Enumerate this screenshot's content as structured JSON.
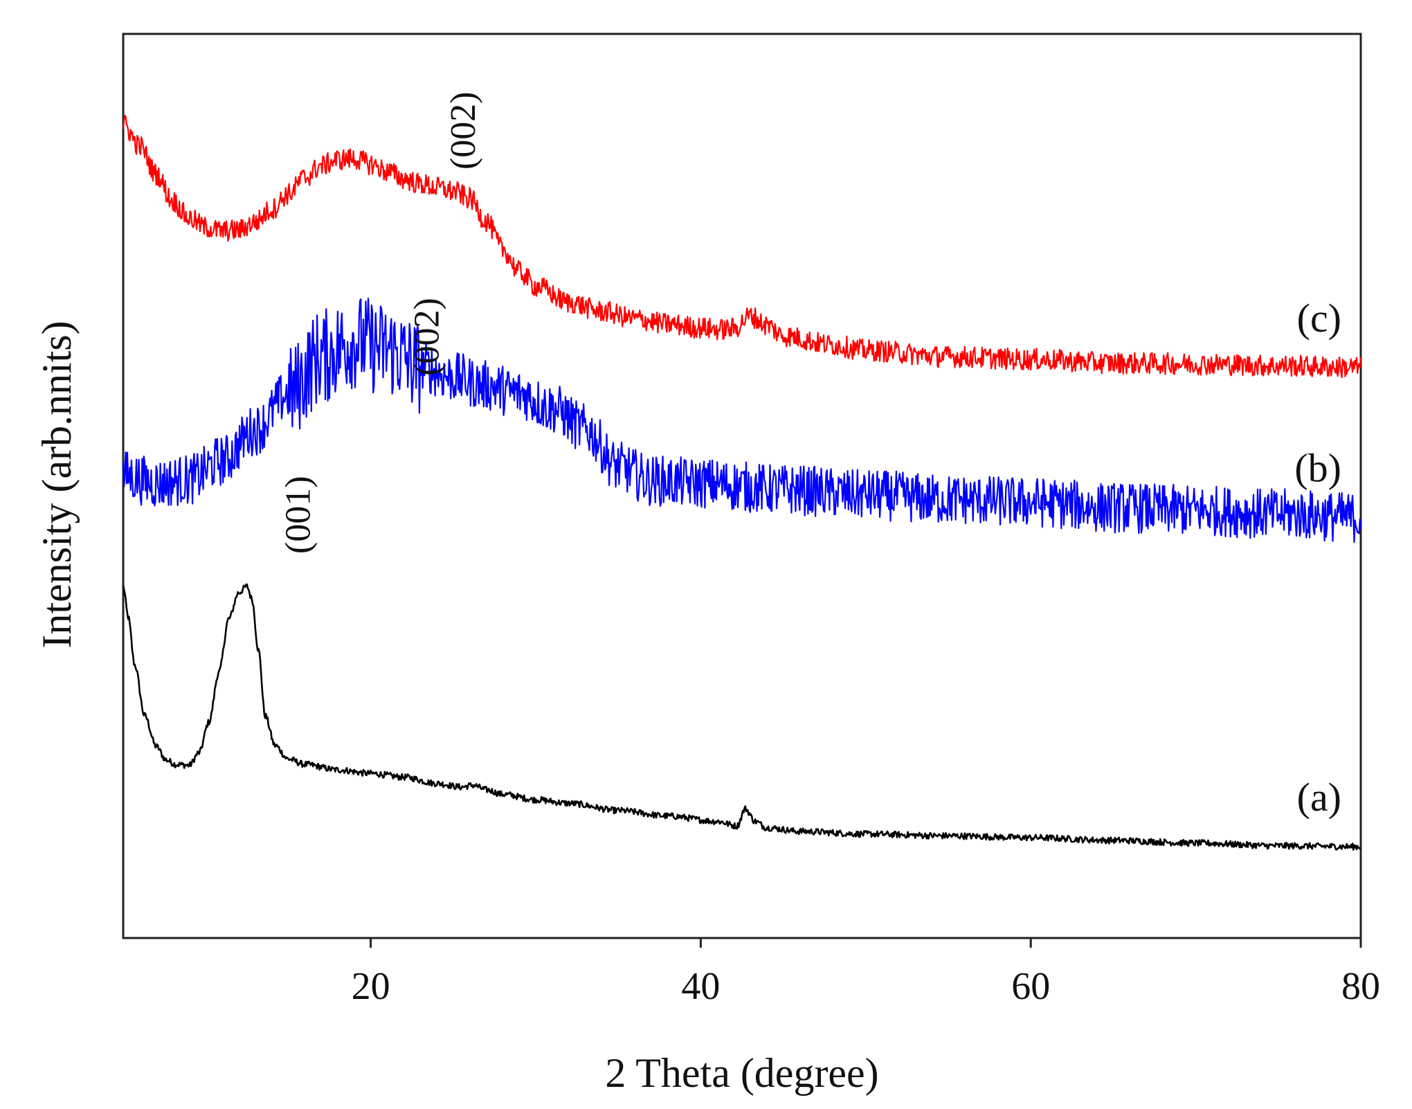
{
  "chart_data": {
    "type": "line",
    "title": "",
    "xlabel": "2 Theta (degree)",
    "ylabel": "Intensity (arb.nnits)",
    "xlim": [
      5,
      80
    ],
    "ylim": [
      0,
      100
    ],
    "xticks": [
      20,
      40,
      60,
      80
    ],
    "yticks_shown": false,
    "grid": false,
    "legend": "none",
    "series": [
      {
        "name": "(a)",
        "label": "(a)",
        "color": "#000000",
        "noise": 0.35,
        "points": [
          [
            5,
            38.9
          ],
          [
            5.3,
            35.5
          ],
          [
            5.7,
            30.2
          ],
          [
            6.3,
            24.6
          ],
          [
            7,
            21.2
          ],
          [
            7.6,
            19.7
          ],
          [
            8.2,
            19.2
          ],
          [
            9,
            19.1
          ],
          [
            9.6,
            20.5
          ],
          [
            10.2,
            23.9
          ],
          [
            10.8,
            29.4
          ],
          [
            11.4,
            35.3
          ],
          [
            12,
            38.2
          ],
          [
            12.5,
            38.9
          ],
          [
            12.8,
            37.5
          ],
          [
            13.2,
            31.8
          ],
          [
            13.6,
            24.6
          ],
          [
            14.2,
            21.3
          ],
          [
            15,
            19.8
          ],
          [
            16,
            19.2
          ],
          [
            18,
            18.6
          ],
          [
            20,
            18.2
          ],
          [
            22,
            17.8
          ],
          [
            24,
            17.1
          ],
          [
            25.5,
            16.7
          ],
          [
            26.2,
            16.9
          ],
          [
            27,
            16.4
          ],
          [
            28,
            15.9
          ],
          [
            30,
            15.3
          ],
          [
            32,
            14.9
          ],
          [
            35,
            14.1
          ],
          [
            38,
            13.5
          ],
          [
            41,
            12.9
          ],
          [
            42.2,
            12.4
          ],
          [
            42.7,
            14.3
          ],
          [
            43.3,
            12.9
          ],
          [
            44,
            12.2
          ],
          [
            46,
            11.8
          ],
          [
            50,
            11.5
          ],
          [
            55,
            11.3
          ],
          [
            60,
            11.1
          ],
          [
            65,
            10.8
          ],
          [
            70,
            10.5
          ],
          [
            75,
            10.2
          ],
          [
            80,
            10.1
          ]
        ]
      },
      {
        "name": "(b)",
        "label": "(b)",
        "color": "#0000ff",
        "noise": 2.8,
        "points": [
          [
            5,
            51.2
          ],
          [
            7,
            50.3
          ],
          [
            9,
            50.7
          ],
          [
            11,
            52.8
          ],
          [
            13,
            56.2
          ],
          [
            15,
            60.1
          ],
          [
            17,
            64.3
          ],
          [
            19,
            66.0
          ],
          [
            21,
            65.1
          ],
          [
            23,
            63.2
          ],
          [
            25,
            62.0
          ],
          [
            27,
            61.1
          ],
          [
            29,
            60.2
          ],
          [
            31,
            58.6
          ],
          [
            33,
            56.3
          ],
          [
            35,
            52.1
          ],
          [
            37,
            50.6
          ],
          [
            40,
            50.3
          ],
          [
            45,
            49.6
          ],
          [
            50,
            49.0
          ],
          [
            55,
            48.5
          ],
          [
            60,
            48.2
          ],
          [
            65,
            47.6
          ],
          [
            70,
            47.3
          ],
          [
            75,
            46.9
          ],
          [
            80,
            46.5
          ]
        ]
      },
      {
        "name": "(c)",
        "label": "(c)",
        "color": "#ff0000",
        "noise": 1.2,
        "points": [
          [
            5,
            90.0
          ],
          [
            6,
            87.6
          ],
          [
            7,
            84.5
          ],
          [
            8,
            81.5
          ],
          [
            9,
            79.6
          ],
          [
            10,
            78.6
          ],
          [
            11,
            78.2
          ],
          [
            12,
            78.3
          ],
          [
            13,
            79.2
          ],
          [
            14,
            80.6
          ],
          [
            15,
            82.3
          ],
          [
            16,
            84.1
          ],
          [
            17,
            85.4
          ],
          [
            18,
            86.1
          ],
          [
            19,
            86.2
          ],
          [
            20,
            85.6
          ],
          [
            21,
            84.8
          ],
          [
            22,
            84.0
          ],
          [
            23,
            83.4
          ],
          [
            24,
            83.0
          ],
          [
            25,
            82.6
          ],
          [
            26,
            81.8
          ],
          [
            27,
            79.3
          ],
          [
            28,
            76.2
          ],
          [
            29,
            73.7
          ],
          [
            30,
            72.1
          ],
          [
            32,
            70.3
          ],
          [
            34,
            69.3
          ],
          [
            36,
            68.5
          ],
          [
            38,
            67.9
          ],
          [
            40,
            67.5
          ],
          [
            41,
            67.3
          ],
          [
            42,
            67.4
          ],
          [
            43,
            68.8
          ],
          [
            44,
            67.8
          ],
          [
            45,
            66.6
          ],
          [
            48,
            65.6
          ],
          [
            50,
            65.0
          ],
          [
            55,
            64.3
          ],
          [
            60,
            64.0
          ],
          [
            65,
            63.6
          ],
          [
            70,
            63.5
          ],
          [
            75,
            63.3
          ],
          [
            80,
            63.1
          ]
        ]
      }
    ],
    "annotations": [
      {
        "text": "(001)",
        "x": 16.3,
        "y": 46.8
      },
      {
        "text": "(002)",
        "x": 24.1,
        "y": 66.5
      },
      {
        "text": "(002)",
        "x": 26.3,
        "y": 89.3
      }
    ]
  }
}
